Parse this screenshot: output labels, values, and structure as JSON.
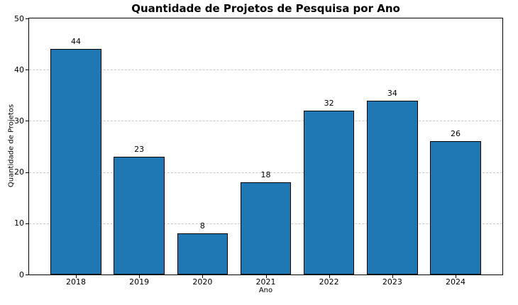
{
  "chart_data": {
    "type": "bar",
    "title": "Quantidade de Projetos de Pesquisa por Ano",
    "xlabel": "Ano",
    "ylabel": "Quantidade de Projetos",
    "categories": [
      "2018",
      "2019",
      "2020",
      "2021",
      "2022",
      "2023",
      "2024"
    ],
    "values": [
      44,
      23,
      8,
      18,
      32,
      34,
      26
    ],
    "ylim": [
      0,
      50
    ],
    "yticks": [
      0,
      10,
      20,
      30,
      40,
      50
    ],
    "bar_color": "#1f77b4",
    "bar_edge_color": "#000000",
    "grid": "horizontal-dashed",
    "grid_color": "#c9c9c9",
    "legend": "none",
    "background": "#ffffff"
  }
}
